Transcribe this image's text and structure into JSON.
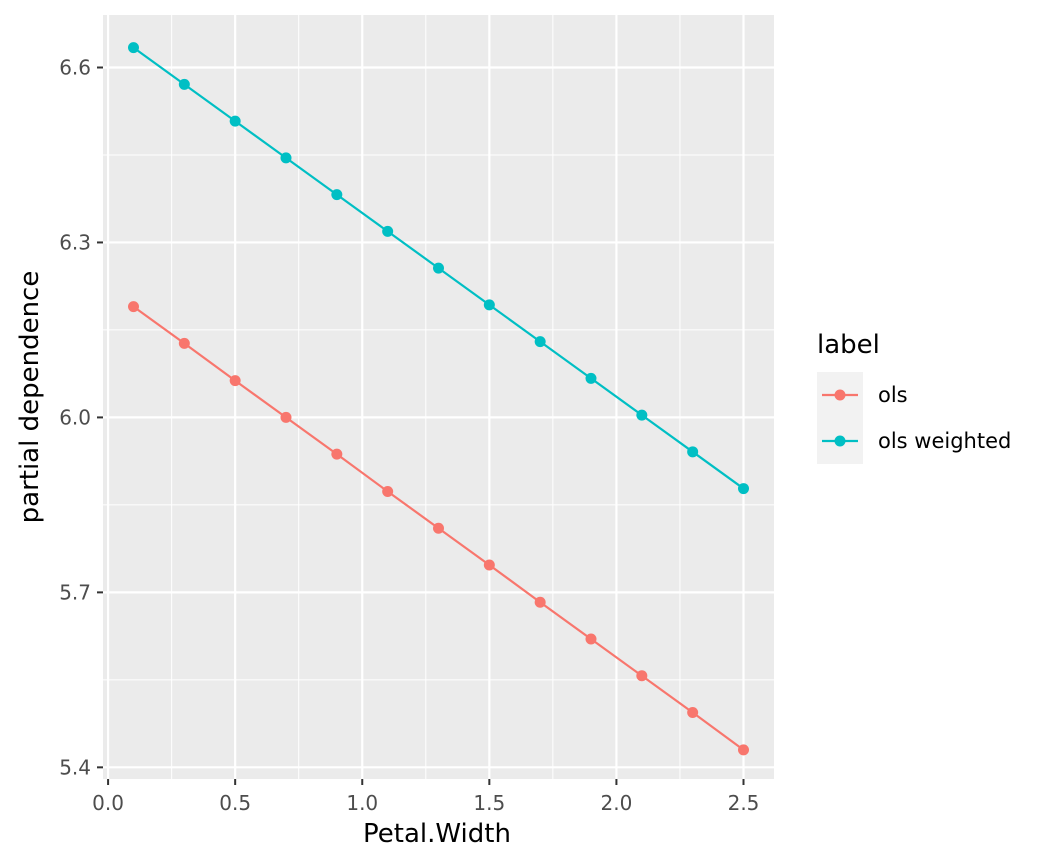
{
  "chart_data": {
    "type": "line",
    "xlabel": "Petal.Width",
    "ylabel": "partial dependence",
    "xlim": [
      -0.02,
      2.62
    ],
    "ylim": [
      5.38,
      6.69
    ],
    "x_ticks": [
      0.0,
      0.5,
      1.0,
      1.5,
      2.0,
      2.5
    ],
    "x_tick_labels": [
      "0.0",
      "0.5",
      "1.0",
      "1.5",
      "2.0",
      "2.5"
    ],
    "y_ticks": [
      5.4,
      5.7,
      6.0,
      6.3,
      6.6
    ],
    "y_tick_labels": [
      "5.4",
      "5.7",
      "6.0",
      "6.3",
      "6.6"
    ],
    "grid": true,
    "legend": {
      "title": "label",
      "placement": "right"
    },
    "x": [
      0.1,
      0.3,
      0.5,
      0.7,
      0.9,
      1.1,
      1.3,
      1.5,
      1.7,
      1.9,
      2.1,
      2.3,
      2.5
    ],
    "series": [
      {
        "name": "ols",
        "color": "#F8766D",
        "values": [
          6.19,
          6.127,
          6.063,
          6.0,
          5.937,
          5.873,
          5.81,
          5.747,
          5.683,
          5.62,
          5.557,
          5.494,
          5.43
        ]
      },
      {
        "name": "ols weighted",
        "color": "#00BFC4",
        "values": [
          6.634,
          6.571,
          6.508,
          6.445,
          6.382,
          6.319,
          6.256,
          6.193,
          6.13,
          6.067,
          6.004,
          5.941,
          5.878
        ]
      }
    ]
  }
}
